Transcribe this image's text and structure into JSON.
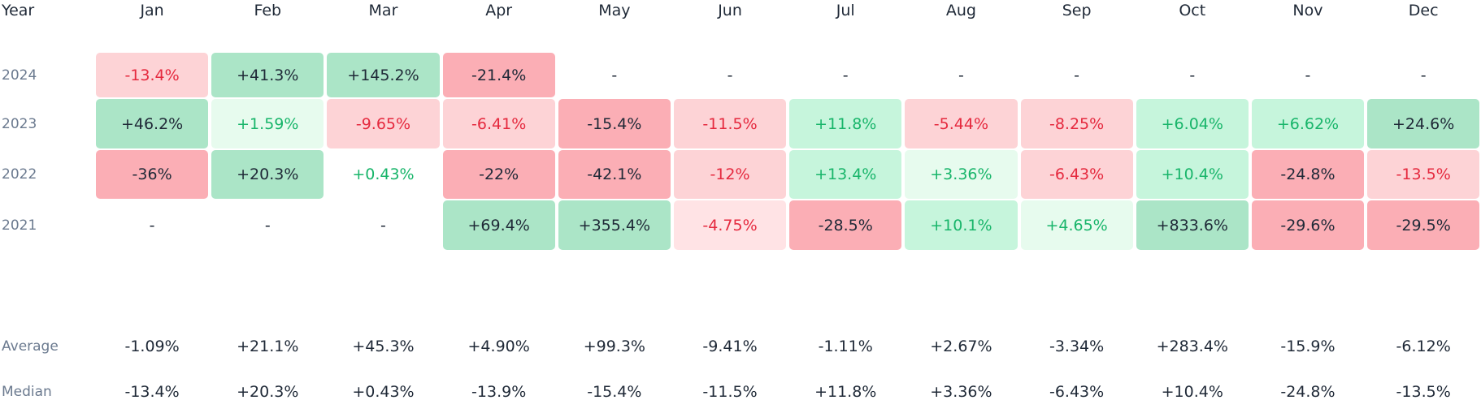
{
  "header": {
    "year_label": "Year",
    "months": [
      "Jan",
      "Feb",
      "Mar",
      "Apr",
      "May",
      "Jun",
      "Jul",
      "Aug",
      "Sep",
      "Oct",
      "Nov",
      "Dec"
    ]
  },
  "rows": [
    {
      "year": "2024",
      "cells": [
        {
          "text": "-13.4%",
          "tone": "neg-mid"
        },
        {
          "text": "+41.3%",
          "tone": "pos-strong"
        },
        {
          "text": "+145.2%",
          "tone": "pos-strong"
        },
        {
          "text": "-21.4%",
          "tone": "neg-strong"
        },
        {
          "text": "-",
          "tone": "empty"
        },
        {
          "text": "-",
          "tone": "empty"
        },
        {
          "text": "-",
          "tone": "empty"
        },
        {
          "text": "-",
          "tone": "empty"
        },
        {
          "text": "-",
          "tone": "empty"
        },
        {
          "text": "-",
          "tone": "empty"
        },
        {
          "text": "-",
          "tone": "empty"
        },
        {
          "text": "-",
          "tone": "empty"
        }
      ]
    },
    {
      "year": "2023",
      "cells": [
        {
          "text": "+46.2%",
          "tone": "pos-strong"
        },
        {
          "text": "+1.59%",
          "tone": "pos-light"
        },
        {
          "text": "-9.65%",
          "tone": "neg-mid"
        },
        {
          "text": "-6.41%",
          "tone": "neg-mid"
        },
        {
          "text": "-15.4%",
          "tone": "neg-strong"
        },
        {
          "text": "-11.5%",
          "tone": "neg-mid"
        },
        {
          "text": "+11.8%",
          "tone": "pos-mid"
        },
        {
          "text": "-5.44%",
          "tone": "neg-mid"
        },
        {
          "text": "-8.25%",
          "tone": "neg-mid"
        },
        {
          "text": "+6.04%",
          "tone": "pos-mid"
        },
        {
          "text": "+6.62%",
          "tone": "pos-mid"
        },
        {
          "text": "+24.6%",
          "tone": "pos-strong"
        }
      ]
    },
    {
      "year": "2022",
      "cells": [
        {
          "text": "-36%",
          "tone": "neg-strong"
        },
        {
          "text": "+20.3%",
          "tone": "pos-strong"
        },
        {
          "text": "+0.43%",
          "tone": "pos-none"
        },
        {
          "text": "-22%",
          "tone": "neg-strong"
        },
        {
          "text": "-42.1%",
          "tone": "neg-strong"
        },
        {
          "text": "-12%",
          "tone": "neg-mid"
        },
        {
          "text": "+13.4%",
          "tone": "pos-mid"
        },
        {
          "text": "+3.36%",
          "tone": "pos-light"
        },
        {
          "text": "-6.43%",
          "tone": "neg-mid"
        },
        {
          "text": "+10.4%",
          "tone": "pos-mid"
        },
        {
          "text": "-24.8%",
          "tone": "neg-strong"
        },
        {
          "text": "-13.5%",
          "tone": "neg-mid"
        }
      ]
    },
    {
      "year": "2021",
      "cells": [
        {
          "text": "-",
          "tone": "empty"
        },
        {
          "text": "-",
          "tone": "empty"
        },
        {
          "text": "-",
          "tone": "empty"
        },
        {
          "text": "+69.4%",
          "tone": "pos-strong"
        },
        {
          "text": "+355.4%",
          "tone": "pos-strong"
        },
        {
          "text": "-4.75%",
          "tone": "neg-light"
        },
        {
          "text": "-28.5%",
          "tone": "neg-strong"
        },
        {
          "text": "+10.1%",
          "tone": "pos-mid"
        },
        {
          "text": "+4.65%",
          "tone": "pos-light"
        },
        {
          "text": "+833.6%",
          "tone": "pos-strong"
        },
        {
          "text": "-29.6%",
          "tone": "neg-strong"
        },
        {
          "text": "-29.5%",
          "tone": "neg-strong"
        }
      ]
    }
  ],
  "stats": [
    {
      "label": "Average",
      "values": [
        "-1.09%",
        "+21.1%",
        "+45.3%",
        "+4.90%",
        "+99.3%",
        "-9.41%",
        "-1.11%",
        "+2.67%",
        "-3.34%",
        "+283.4%",
        "-15.9%",
        "-6.12%"
      ]
    },
    {
      "label": "Median",
      "values": [
        "-13.4%",
        "+20.3%",
        "+0.43%",
        "-13.9%",
        "-15.4%",
        "-11.5%",
        "+11.8%",
        "+3.36%",
        "-6.43%",
        "+10.4%",
        "-24.8%",
        "-13.5%"
      ]
    }
  ],
  "colors": {
    "positive_text": "#18b56a",
    "negative_text": "#e5293e",
    "positive_strong_bg": "#abe5c7",
    "positive_mid_bg": "#c6f5dc",
    "positive_light_bg": "#e7fbee",
    "negative_strong_bg": "#fbaeb5",
    "negative_mid_bg": "#fdd3d6",
    "negative_light_bg": "#ffe3e5",
    "label_text": "#6b7a8f"
  }
}
